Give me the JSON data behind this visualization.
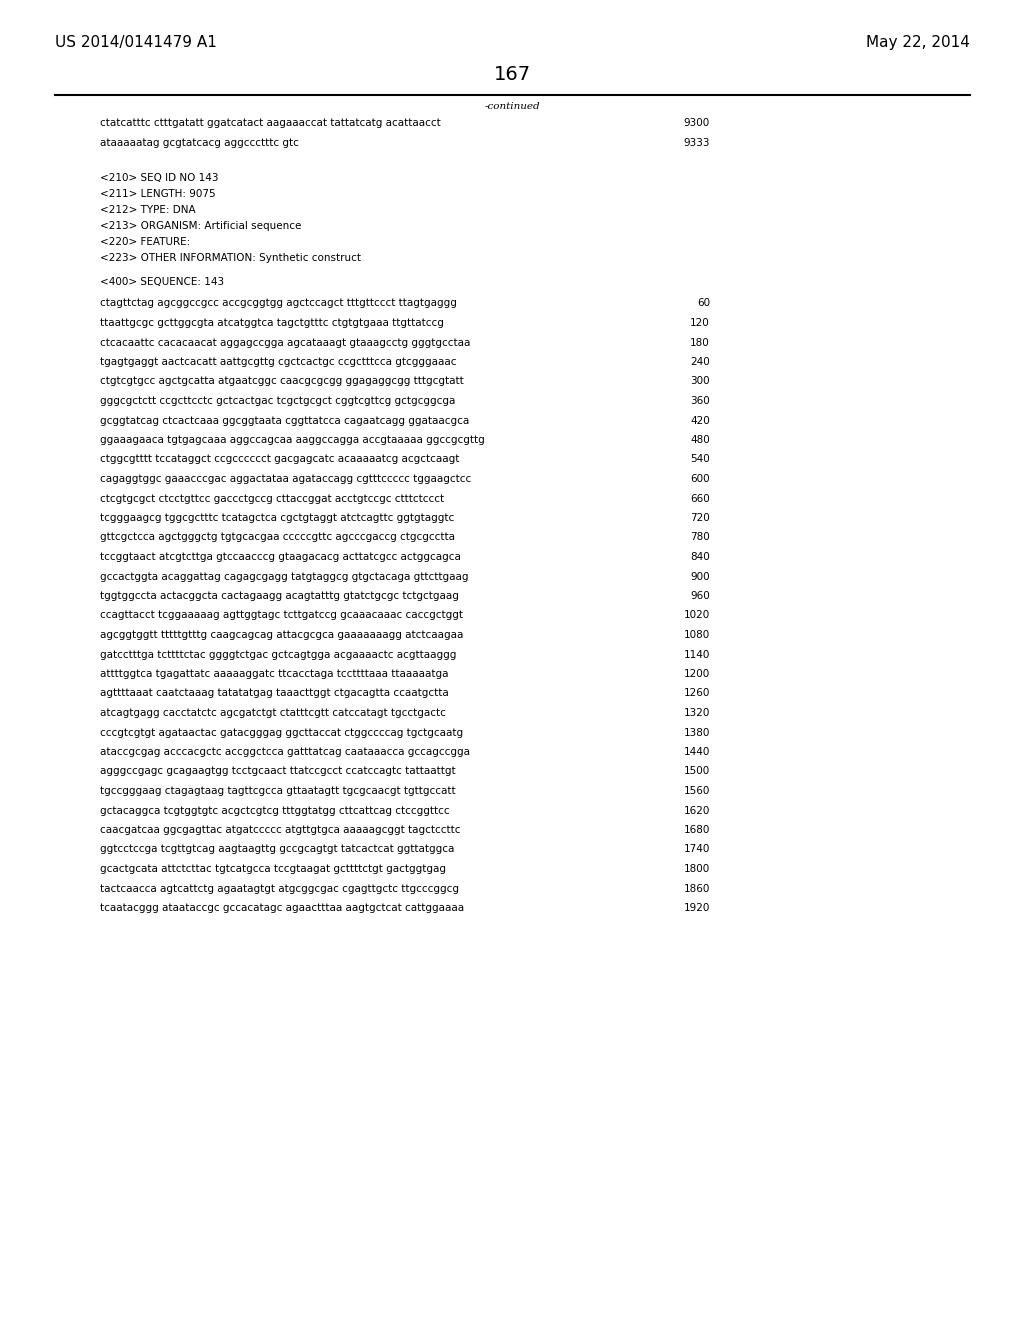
{
  "page_left": "US 2014/0141479 A1",
  "page_right": "May 22, 2014",
  "page_number": "167",
  "continued_label": "-continued",
  "background_color": "#ffffff",
  "text_color": "#000000",
  "body_font_size": 7.5,
  "header_font_size": 11.0,
  "page_num_font_size": 14,
  "line_color": "#000000",
  "continuation_lines": [
    {
      "seq": "ctatcatttc ctttgatatt ggatcatact aagaaaccat tattatcatg acattaacct",
      "num": "9300"
    },
    {
      "seq": "ataaaaatag gcgtatcacg aggccctttc gtc",
      "num": "9333"
    }
  ],
  "metadata_lines": [
    "<210> SEQ ID NO 143",
    "<211> LENGTH: 9075",
    "<212> TYPE: DNA",
    "<213> ORGANISM: Artificial sequence",
    "<220> FEATURE:",
    "<223> OTHER INFORMATION: Synthetic construct"
  ],
  "sequence_label": "<400> SEQUENCE: 143",
  "sequence_lines": [
    {
      "seq": "ctagttctag agcggccgcc accgcggtgg agctccagct tttgttccct ttagtgaggg",
      "num": "60"
    },
    {
      "seq": "ttaattgcgc gcttggcgta atcatggtca tagctgtttc ctgtgtgaaa ttgttatccg",
      "num": "120"
    },
    {
      "seq": "ctcacaattc cacacaacat aggagccgga agcataaagt gtaaagcctg gggtgcctaa",
      "num": "180"
    },
    {
      "seq": "tgagtgaggt aactcacatt aattgcgttg cgctcactgc ccgctttcca gtcgggaaac",
      "num": "240"
    },
    {
      "seq": "ctgtcgtgcc agctgcatta atgaatcggc caacgcgcgg ggagaggcgg tttgcgtatt",
      "num": "300"
    },
    {
      "seq": "gggcgctctt ccgcttcctc gctcactgac tcgctgcgct cggtcgttcg gctgcggcga",
      "num": "360"
    },
    {
      "seq": "gcggtatcag ctcactcaaa ggcggtaata cggttatcca cagaatcagg ggataacgca",
      "num": "420"
    },
    {
      "seq": "ggaaagaaca tgtgagcaaa aggccagcaa aaggccagga accgtaaaaa ggccgcgttg",
      "num": "480"
    },
    {
      "seq": "ctggcgtttt tccataggct ccgcccccct gacgagcatc acaaaaatcg acgctcaagt",
      "num": "540"
    },
    {
      "seq": "cagaggtggc gaaacccgac aggactataa agataccagg cgtttccccc tggaagctcc",
      "num": "600"
    },
    {
      "seq": "ctcgtgcgct ctcctgttcc gaccctgccg cttaccggat acctgtccgc ctttctccct",
      "num": "660"
    },
    {
      "seq": "tcgggaagcg tggcgctttc tcatagctca cgctgtaggt atctcagttc ggtgtaggtc",
      "num": "720"
    },
    {
      "seq": "gttcgctcca agctgggctg tgtgcacgaa cccccgttc agcccgaccg ctgcgcctta",
      "num": "780"
    },
    {
      "seq": "tccggtaact atcgtcttga gtccaacccg gtaagacacg acttatcgcc actggcagca",
      "num": "840"
    },
    {
      "seq": "gccactggta acaggattag cagagcgagg tatgtaggcg gtgctacaga gttcttgaag",
      "num": "900"
    },
    {
      "seq": "tggtggccta actacggcta cactagaagg acagtatttg gtatctgcgc tctgctgaag",
      "num": "960"
    },
    {
      "seq": "ccagttacct tcggaaaaag agttggtagc tcttgatccg gcaaacaaac caccgctggt",
      "num": "1020"
    },
    {
      "seq": "agcggtggtt tttttgtttg caagcagcag attacgcgca gaaaaaaagg atctcaagaa",
      "num": "1080"
    },
    {
      "seq": "gatcctttga tcttttctac ggggtctgac gctcagtgga acgaaaactc acgttaaggg",
      "num": "1140"
    },
    {
      "seq": "attttggtca tgagattatc aaaaaggatc ttcacctaga tccttttaaa ttaaaaatga",
      "num": "1200"
    },
    {
      "seq": "agttttaaat caatctaaag tatatatgag taaacttggt ctgacagtta ccaatgctta",
      "num": "1260"
    },
    {
      "seq": "atcagtgagg cacctatctc agcgatctgt ctatttcgtt catccatagt tgcctgactc",
      "num": "1320"
    },
    {
      "seq": "cccgtcgtgt agataactac gatacgggag ggcttaccat ctggccccag tgctgcaatg",
      "num": "1380"
    },
    {
      "seq": "ataccgcgag acccacgctc accggctcca gatttatcag caataaacca gccagccgga",
      "num": "1440"
    },
    {
      "seq": "agggccgagc gcagaagtgg tcctgcaact ttatccgcct ccatccagtc tattaattgt",
      "num": "1500"
    },
    {
      "seq": "tgccgggaag ctagagtaag tagttcgcca gttaatagtt tgcgcaacgt tgttgccatt",
      "num": "1560"
    },
    {
      "seq": "gctacaggca tcgtggtgtc acgctcgtcg tttggtatgg cttcattcag ctccggttcc",
      "num": "1620"
    },
    {
      "seq": "caacgatcaa ggcgagttac atgatccccc atgttgtgca aaaaagcggt tagctccttc",
      "num": "1680"
    },
    {
      "seq": "ggtcctccga tcgttgtcag aagtaagttg gccgcagtgt tatcactcat ggttatggca",
      "num": "1740"
    },
    {
      "seq": "gcactgcata attctcttac tgtcatgcca tccgtaagat gcttttctgt gactggtgag",
      "num": "1800"
    },
    {
      "seq": "tactcaacca agtcattctg agaatagtgt atgcggcgac cgagttgctc ttgcccggcg",
      "num": "1860"
    },
    {
      "seq": "tcaatacggg ataataccgc gccacatagc agaactttaa aagtgctcat cattggaaaa",
      "num": "1920"
    }
  ]
}
